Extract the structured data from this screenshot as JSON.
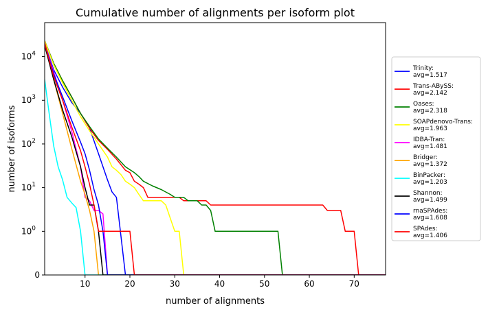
{
  "chart_data": {
    "type": "line",
    "title": "Cumulative number of alignments per isoform plot",
    "xlabel": "number of alignments",
    "ylabel": "number of isoforms",
    "xlim": [
      1,
      77
    ],
    "ylim": [
      0,
      60000
    ],
    "y_scale": "symlog",
    "x_ticks": [
      10,
      20,
      30,
      40,
      50,
      60,
      70
    ],
    "y_ticks": [
      {
        "value": 0,
        "label": "0"
      },
      {
        "value": 1,
        "label": "10",
        "exp": "0"
      },
      {
        "value": 10,
        "label": "10",
        "exp": "1"
      },
      {
        "value": 100,
        "label": "10",
        "exp": "2"
      },
      {
        "value": 1000,
        "label": "10",
        "exp": "3"
      },
      {
        "value": 10000,
        "label": "10",
        "exp": "4"
      }
    ],
    "grid": false,
    "legend_position": "right, outside plot",
    "series": [
      {
        "name": "Trinity:",
        "avg": "avg=1.517",
        "color": "#0000ff",
        "points": [
          [
            1,
            20000
          ],
          [
            3,
            5000
          ],
          [
            5,
            2000
          ],
          [
            7,
            900
          ],
          [
            9,
            500
          ],
          [
            11,
            230
          ],
          [
            13,
            60
          ],
          [
            15,
            15
          ],
          [
            16,
            8
          ],
          [
            17,
            6
          ],
          [
            18,
            0.9
          ],
          [
            19,
            0
          ],
          [
            77,
            0
          ]
        ]
      },
      {
        "name": "Trans-ABySS:",
        "avg": "avg=2.142",
        "color": "#ff0000",
        "points": [
          [
            1,
            23000
          ],
          [
            3,
            7000
          ],
          [
            5,
            2800
          ],
          [
            7,
            1200
          ],
          [
            9,
            500
          ],
          [
            11,
            230
          ],
          [
            13,
            120
          ],
          [
            15,
            75
          ],
          [
            17,
            45
          ],
          [
            19,
            25
          ],
          [
            20,
            22
          ],
          [
            21,
            14
          ],
          [
            22,
            12
          ],
          [
            23,
            10
          ],
          [
            24,
            6
          ],
          [
            31,
            6
          ],
          [
            32,
            5
          ],
          [
            37,
            5
          ],
          [
            38,
            4
          ],
          [
            63,
            4
          ],
          [
            64,
            3
          ],
          [
            67,
            3
          ],
          [
            68,
            1
          ],
          [
            70,
            1
          ],
          [
            71,
            0
          ],
          [
            77,
            0
          ]
        ]
      },
      {
        "name": "Oases:",
        "avg": "avg=2.318",
        "color": "#008000",
        "points": [
          [
            1,
            23000
          ],
          [
            3,
            7000
          ],
          [
            5,
            2800
          ],
          [
            7,
            1200
          ],
          [
            9,
            500
          ],
          [
            11,
            250
          ],
          [
            13,
            130
          ],
          [
            15,
            80
          ],
          [
            17,
            50
          ],
          [
            19,
            30
          ],
          [
            21,
            22
          ],
          [
            22,
            18
          ],
          [
            23,
            14
          ],
          [
            25,
            11
          ],
          [
            27,
            9
          ],
          [
            29,
            7
          ],
          [
            30,
            6
          ],
          [
            32,
            6
          ],
          [
            33,
            5
          ],
          [
            35,
            5
          ],
          [
            36,
            4
          ],
          [
            37,
            4
          ],
          [
            38,
            3
          ],
          [
            39,
            1
          ],
          [
            53,
            1
          ],
          [
            54,
            0
          ],
          [
            77,
            0
          ]
        ]
      },
      {
        "name": "SOAPdenovo-Trans:",
        "avg": "avg=1.963",
        "color": "#ffff00",
        "points": [
          [
            1,
            23000
          ],
          [
            3,
            6500
          ],
          [
            5,
            2500
          ],
          [
            7,
            1000
          ],
          [
            9,
            420
          ],
          [
            11,
            200
          ],
          [
            13,
            100
          ],
          [
            15,
            50
          ],
          [
            16,
            30
          ],
          [
            17,
            25
          ],
          [
            18,
            20
          ],
          [
            19,
            14
          ],
          [
            20,
            12
          ],
          [
            21,
            10
          ],
          [
            22,
            7
          ],
          [
            23,
            5
          ],
          [
            27,
            5
          ],
          [
            28,
            4
          ],
          [
            29,
            2
          ],
          [
            30,
            1
          ],
          [
            31,
            1
          ],
          [
            32,
            0
          ],
          [
            77,
            0
          ]
        ]
      },
      {
        "name": "IDBA-Tran:",
        "avg": "avg=1.481",
        "color": "#ff00ff",
        "points": [
          [
            1,
            20000
          ],
          [
            3,
            4500
          ],
          [
            5,
            1000
          ],
          [
            7,
            200
          ],
          [
            9,
            30
          ],
          [
            10,
            6
          ],
          [
            11,
            5
          ],
          [
            12,
            3
          ],
          [
            13,
            3
          ],
          [
            14,
            2.5
          ],
          [
            15,
            0
          ],
          [
            77,
            0
          ]
        ]
      },
      {
        "name": "Bridger:",
        "avg": "avg=1.372",
        "color": "#ffa500",
        "points": [
          [
            1,
            23000
          ],
          [
            3,
            3000
          ],
          [
            5,
            500
          ],
          [
            7,
            80
          ],
          [
            9,
            14
          ],
          [
            10,
            7
          ],
          [
            11,
            3
          ],
          [
            12,
            1
          ],
          [
            13,
            0
          ],
          [
            77,
            0
          ]
        ]
      },
      {
        "name": "BinPacker:",
        "avg": "avg=1.203",
        "color": "#00ffff",
        "points": [
          [
            1,
            3000
          ],
          [
            2,
            500
          ],
          [
            3,
            90
          ],
          [
            4,
            30
          ],
          [
            5,
            15
          ],
          [
            6,
            6
          ],
          [
            7,
            4.5
          ],
          [
            8,
            3.5
          ],
          [
            9,
            1
          ],
          [
            10,
            0
          ],
          [
            77,
            0
          ]
        ]
      },
      {
        "name": "Shannon:",
        "avg": "avg=1.499",
        "color": "#000000",
        "points": [
          [
            1,
            18000
          ],
          [
            3,
            3000
          ],
          [
            5,
            600
          ],
          [
            7,
            150
          ],
          [
            9,
            30
          ],
          [
            10,
            10
          ],
          [
            11,
            4
          ],
          [
            12,
            4
          ],
          [
            13,
            1
          ],
          [
            14,
            0
          ],
          [
            77,
            0
          ]
        ]
      },
      {
        "name": "rnaSPAdes:",
        "avg": "avg=1.608",
        "color": "#0000ff",
        "points": [
          [
            1,
            20000
          ],
          [
            3,
            4000
          ],
          [
            5,
            1200
          ],
          [
            7,
            350
          ],
          [
            9,
            110
          ],
          [
            10,
            60
          ],
          [
            11,
            25
          ],
          [
            12,
            9
          ],
          [
            13,
            4
          ],
          [
            14,
            1
          ],
          [
            15,
            0
          ],
          [
            77,
            0
          ]
        ]
      },
      {
        "name": "SPAdes:",
        "avg": "avg=1.406",
        "color": "#ff0000",
        "points": [
          [
            1,
            20000
          ],
          [
            3,
            3500
          ],
          [
            5,
            1000
          ],
          [
            7,
            250
          ],
          [
            9,
            70
          ],
          [
            10,
            30
          ],
          [
            11,
            12
          ],
          [
            12,
            4
          ],
          [
            13,
            1
          ],
          [
            20,
            1
          ],
          [
            21,
            0
          ],
          [
            77,
            0
          ]
        ]
      }
    ]
  }
}
